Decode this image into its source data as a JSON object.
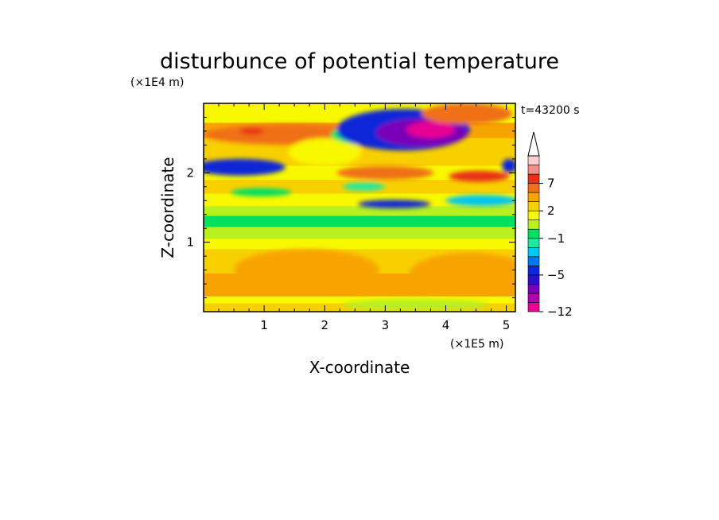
{
  "chart_data": {
    "type": "heatmap",
    "title": "disturbunce of potential temperature",
    "xlabel": "X-coordinate",
    "ylabel": "Z-coordinate",
    "x_unit": "(×1E5 m)",
    "y_unit": "(×1E4 m)",
    "time_label": "t=43200 s",
    "xlim": [
      0,
      5.15
    ],
    "ylim": [
      0,
      3.0
    ],
    "x_ticks": [
      "1",
      "2",
      "3",
      "4",
      "5"
    ],
    "y_ticks": [
      "1",
      "2"
    ],
    "colorbar": {
      "labels": [
        "7",
        "2",
        "−1",
        "−5",
        "−12"
      ],
      "label_values": [
        7,
        2,
        -1,
        -5,
        -12
      ],
      "levels": [
        -12,
        -10,
        -8,
        -6,
        -5,
        -4,
        -3,
        -2,
        -1,
        0,
        1,
        2,
        3,
        5,
        7,
        9,
        11
      ],
      "colors": [
        "#e80094",
        "#b000b0",
        "#7a00b8",
        "#2a10c8",
        "#0c28d8",
        "#0078f0",
        "#00c8f0",
        "#20e8a0",
        "#00e060",
        "#b8f020",
        "#f8f800",
        "#f8d000",
        "#f8a400",
        "#f07018",
        "#e83018",
        "#f09088",
        "#f8d0d0"
      ],
      "extend": "max"
    },
    "bands": [
      {
        "z": [
          0.0,
          0.12
        ],
        "level": 2
      },
      {
        "z": [
          0.12,
          0.22
        ],
        "level": 1
      },
      {
        "z": [
          0.22,
          0.55
        ],
        "level": 3
      },
      {
        "z": [
          0.55,
          0.9
        ],
        "level": 2
      },
      {
        "z": [
          0.9,
          1.05
        ],
        "level": 1
      },
      {
        "z": [
          1.05,
          1.22
        ],
        "level": 0
      },
      {
        "z": [
          1.22,
          1.38
        ],
        "level": -1
      },
      {
        "z": [
          1.38,
          1.52
        ],
        "level": 0
      },
      {
        "z": [
          1.52,
          1.7
        ],
        "level": 1
      },
      {
        "z": [
          1.7,
          1.9
        ],
        "level": 2
      },
      {
        "z": [
          1.9,
          2.1
        ],
        "level": 1
      },
      {
        "z": [
          2.1,
          2.5
        ],
        "level": 2
      },
      {
        "z": [
          2.5,
          2.72
        ],
        "level": 4
      },
      {
        "z": [
          2.72,
          3.0
        ],
        "level": 1
      }
    ],
    "features": [
      {
        "x": 0.6,
        "z": 2.08,
        "rx": 0.75,
        "rz": 0.12,
        "level": -5
      },
      {
        "x": 0.95,
        "z": 1.72,
        "rx": 0.5,
        "rz": 0.06,
        "level": -1
      },
      {
        "x": 1.5,
        "z": 2.55,
        "rx": 1.5,
        "rz": 0.15,
        "level": 5
      },
      {
        "x": 0.8,
        "z": 2.6,
        "rx": 0.2,
        "rz": 0.05,
        "level": 7
      },
      {
        "x": 2.0,
        "z": 2.3,
        "rx": 0.6,
        "rz": 0.2,
        "level": 1
      },
      {
        "x": 2.75,
        "z": 2.55,
        "rx": 0.65,
        "rz": 0.15,
        "level": -1
      },
      {
        "x": 3.3,
        "z": 2.62,
        "rx": 1.1,
        "rz": 0.3,
        "level": -5
      },
      {
        "x": 3.6,
        "z": 2.58,
        "rx": 0.75,
        "rz": 0.2,
        "level": -8
      },
      {
        "x": 3.75,
        "z": 2.62,
        "rx": 0.4,
        "rz": 0.12,
        "level": -12
      },
      {
        "x": 4.35,
        "z": 2.85,
        "rx": 0.75,
        "rz": 0.15,
        "level": 5
      },
      {
        "x": 3.0,
        "z": 2.0,
        "rx": 0.8,
        "rz": 0.1,
        "level": 5
      },
      {
        "x": 3.15,
        "z": 1.55,
        "rx": 0.6,
        "rz": 0.06,
        "level": -5
      },
      {
        "x": 2.65,
        "z": 1.8,
        "rx": 0.35,
        "rz": 0.06,
        "level": -2
      },
      {
        "x": 4.55,
        "z": 1.95,
        "rx": 0.5,
        "rz": 0.08,
        "level": 7
      },
      {
        "x": 4.6,
        "z": 1.6,
        "rx": 0.6,
        "rz": 0.08,
        "level": -3
      },
      {
        "x": 5.05,
        "z": 2.1,
        "rx": 0.12,
        "rz": 0.1,
        "level": -5
      },
      {
        "x": 1.7,
        "z": 0.6,
        "rx": 1.2,
        "rz": 0.3,
        "level": 3
      },
      {
        "x": 4.4,
        "z": 0.55,
        "rx": 1.0,
        "rz": 0.3,
        "level": 3
      },
      {
        "x": 3.5,
        "z": 0.1,
        "rx": 1.2,
        "rz": 0.08,
        "level": 0
      }
    ]
  }
}
